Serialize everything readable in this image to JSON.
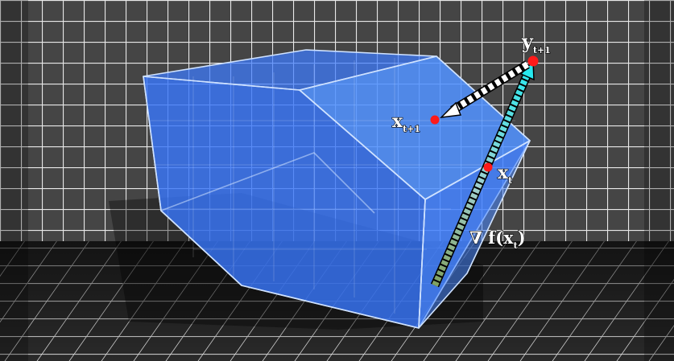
{
  "labels": {
    "y_next": {
      "base": "y",
      "sub": "t+1"
    },
    "x_next": {
      "base": "x",
      "sub": "t+1"
    },
    "x_t": {
      "base": "x",
      "sub": "t"
    },
    "gradient": {
      "prefix": "∇ f(x",
      "sub": "t",
      "suffix": ")"
    }
  },
  "colors": {
    "room_back": "#3e3e3e",
    "room_floor": "#262626",
    "grid_line": "#f2f2f2",
    "polytope_fill": "#3d7bff",
    "polytope_edge": "#cfe2ff",
    "point": "#ff0000",
    "gradient_arrow": "#2ee6e6",
    "projection_arrow": "#ffffff"
  },
  "points": [
    "x_t",
    "x_next",
    "y_next"
  ]
}
